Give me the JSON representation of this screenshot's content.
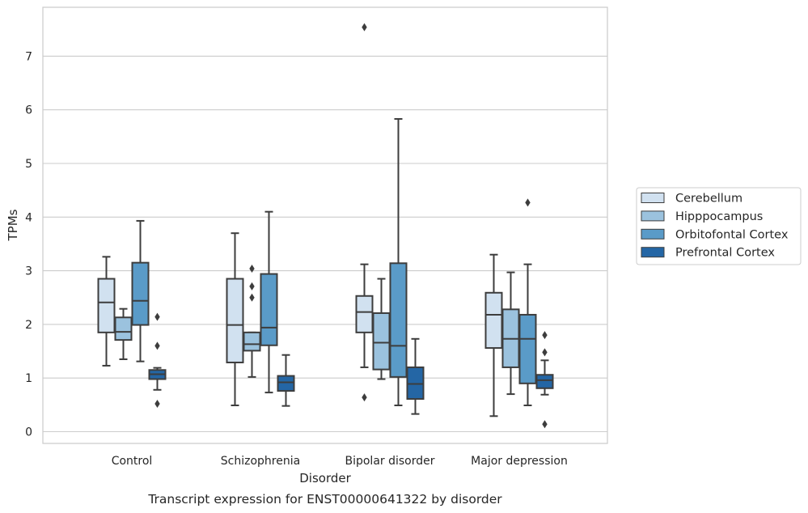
{
  "chart_data": {
    "type": "boxplot",
    "caption": "Transcript expression for ENST00000641322 by disorder",
    "xlabel": "Disorder",
    "ylabel": "TPMs",
    "ylim": [
      -0.2,
      7.9
    ],
    "yticks": [
      0,
      1,
      2,
      3,
      4,
      5,
      6,
      7
    ],
    "grid": "horizontal",
    "legend_position": "right",
    "categories": [
      "Control",
      "Schizophrenia",
      "Bipolar disorder",
      "Major depression"
    ],
    "series": [
      {
        "name": "Cerebellum",
        "color": "#d1e1f0",
        "boxes": [
          {
            "whislo": 1.23,
            "q1": 1.85,
            "med": 2.41,
            "q3": 2.85,
            "whishi": 3.26,
            "fliers": []
          },
          {
            "whislo": 0.49,
            "q1": 1.29,
            "med": 1.99,
            "q3": 2.85,
            "whishi": 3.7,
            "fliers": []
          },
          {
            "whislo": 1.2,
            "q1": 1.85,
            "med": 2.23,
            "q3": 2.53,
            "whishi": 3.12,
            "fliers": [
              7.54,
              0.64
            ]
          },
          {
            "whislo": 0.29,
            "q1": 1.56,
            "med": 2.18,
            "q3": 2.59,
            "whishi": 3.3,
            "fliers": []
          }
        ]
      },
      {
        "name": "Hipppocampus",
        "color": "#9bc2de",
        "boxes": [
          {
            "whislo": 1.35,
            "q1": 1.71,
            "med": 1.86,
            "q3": 2.13,
            "whishi": 2.29,
            "fliers": []
          },
          {
            "whislo": 1.02,
            "q1": 1.51,
            "med": 1.63,
            "q3": 1.85,
            "whishi": 1.85,
            "fliers": [
              3.04,
              2.71,
              2.5
            ]
          },
          {
            "whislo": 0.98,
            "q1": 1.16,
            "med": 1.66,
            "q3": 2.21,
            "whishi": 2.85,
            "fliers": []
          },
          {
            "whislo": 0.7,
            "q1": 1.2,
            "med": 1.73,
            "q3": 2.28,
            "whishi": 2.97,
            "fliers": []
          }
        ]
      },
      {
        "name": "Orbitofontal Cortex",
        "color": "#5a9bc8",
        "boxes": [
          {
            "whislo": 1.31,
            "q1": 1.99,
            "med": 2.44,
            "q3": 3.15,
            "whishi": 3.93,
            "fliers": []
          },
          {
            "whislo": 0.73,
            "q1": 1.61,
            "med": 1.94,
            "q3": 2.94,
            "whishi": 4.1,
            "fliers": []
          },
          {
            "whislo": 0.49,
            "q1": 1.02,
            "med": 1.6,
            "q3": 3.14,
            "whishi": 5.83,
            "fliers": []
          },
          {
            "whislo": 0.49,
            "q1": 0.9,
            "med": 1.73,
            "q3": 2.18,
            "whishi": 3.12,
            "fliers": [
              4.27
            ]
          }
        ]
      },
      {
        "name": "Prefrontal Cortex",
        "color": "#2466a5",
        "boxes": [
          {
            "whislo": 0.78,
            "q1": 0.98,
            "med": 1.07,
            "q3": 1.15,
            "whishi": 1.19,
            "fliers": [
              2.14,
              1.6,
              0.52
            ]
          },
          {
            "whislo": 0.48,
            "q1": 0.76,
            "med": 0.92,
            "q3": 1.04,
            "whishi": 1.43,
            "fliers": []
          },
          {
            "whislo": 0.33,
            "q1": 0.61,
            "med": 0.89,
            "q3": 1.2,
            "whishi": 1.73,
            "fliers": []
          },
          {
            "whislo": 0.69,
            "q1": 0.81,
            "med": 0.96,
            "q3": 1.06,
            "whishi": 1.33,
            "fliers": [
              1.8,
              1.48,
              0.14
            ]
          }
        ]
      }
    ]
  }
}
